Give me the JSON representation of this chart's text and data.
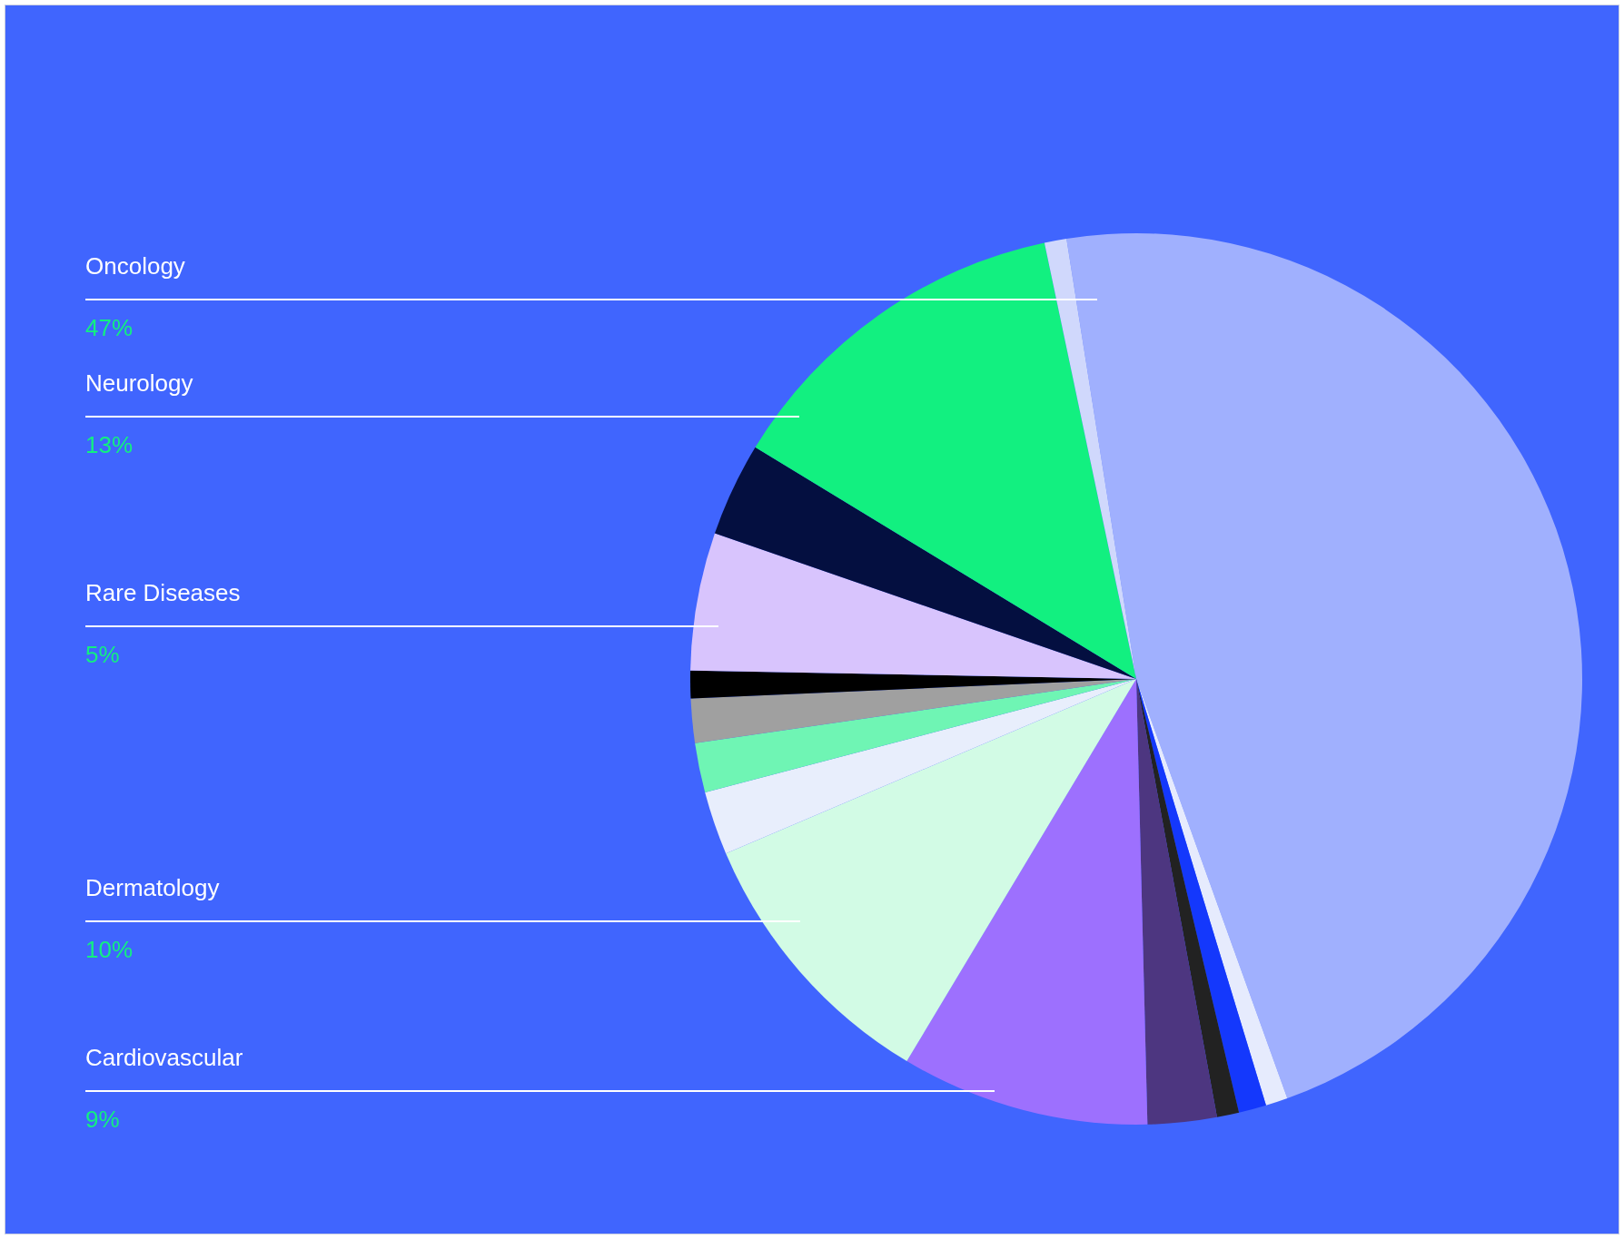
{
  "chart_data": {
    "type": "pie",
    "categories": [
      "Oncology",
      null,
      null,
      null,
      null,
      "Cardiovascular",
      "Dermatology",
      null,
      null,
      null,
      null,
      "Rare Diseases",
      null,
      "Neurology",
      null
    ],
    "values": [
      47,
      0.8,
      1.0,
      0.8,
      2.5,
      9,
      10,
      2.3,
      1.8,
      1.6,
      1.0,
      5,
      3.4,
      13,
      0.8
    ],
    "value_labels": [
      "47%",
      null,
      null,
      null,
      null,
      "9%",
      "10%",
      null,
      null,
      null,
      null,
      "5%",
      null,
      "13%",
      null
    ],
    "colors": [
      "#a0b0fe",
      "#e6ebfd",
      "#1438fc",
      "#222222",
      "#4d3680",
      "#9d70fe",
      "#d2fbe5",
      "#e8eefc",
      "#6ff5b4",
      "#a0a0a0",
      "#000000",
      "#d8c4fd",
      "#040f40",
      "#12f080",
      "#d0d8fc"
    ],
    "legend": false
  }
}
